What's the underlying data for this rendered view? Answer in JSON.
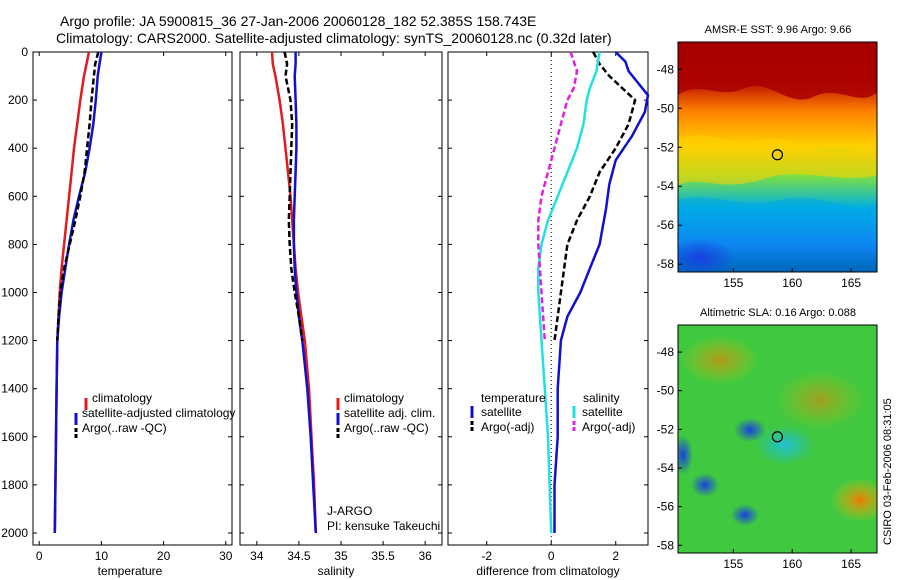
{
  "header": {
    "line1": "Argo profile: JA 5900815_36 27-Jan-2006 20060128_182 52.385S 158.743E",
    "line2": "Climatology: CARS2000. Satellite-adjusted climatology: synTS_20060128.nc (0.32d later)"
  },
  "colors": {
    "red": "#e41a1c",
    "blue": "#1010d0",
    "black": "#000000",
    "cyan": "#20e0e0",
    "magenta": "#e020e0"
  },
  "chart_data": [
    {
      "type": "line",
      "xlabel": "temperature",
      "xlim": [
        -1,
        31
      ],
      "ylim": [
        0,
        2050
      ],
      "y_reversed": true,
      "xticks": [
        "0",
        "10",
        "20",
        "30"
      ],
      "yticks": [
        "0",
        "200",
        "400",
        "600",
        "800",
        "1000",
        "1200",
        "1400",
        "1600",
        "1800",
        "2000"
      ],
      "legend": [
        "climatology",
        "satellite-adjusted climatology",
        "Argo(..raw -QC)"
      ],
      "series": [
        {
          "name": "climatology",
          "color": "red",
          "x": [
            8.0,
            7.6,
            7.2,
            6.6,
            6.1,
            5.6,
            5.2,
            4.8,
            4.4,
            4.0,
            3.6,
            3.3,
            3.1,
            2.9,
            2.8,
            2.7,
            2.6,
            2.5
          ],
          "y": [
            0,
            50,
            100,
            200,
            300,
            400,
            500,
            600,
            700,
            800,
            900,
            1000,
            1100,
            1200,
            1400,
            1600,
            1800,
            2000
          ]
        },
        {
          "name": "satellite-adjusted climatology",
          "color": "blue",
          "x": [
            10.0,
            9.7,
            9.4,
            9.1,
            8.7,
            8.1,
            7.4,
            6.4,
            5.5,
            4.8,
            4.2,
            3.6,
            3.2,
            2.9,
            2.8,
            2.7,
            2.6,
            2.5
          ],
          "y": [
            0,
            50,
            100,
            200,
            300,
            400,
            500,
            600,
            700,
            800,
            900,
            1000,
            1100,
            1200,
            1400,
            1600,
            1800,
            2000
          ]
        },
        {
          "name": "Argo(..raw -QC)",
          "color": "black",
          "x": [
            9.5,
            9.0,
            8.8,
            8.4,
            8.1,
            7.7,
            7.3,
            6.6,
            5.8,
            4.9,
            4.0,
            3.4,
            3.1,
            2.9
          ],
          "y": [
            0,
            50,
            100,
            200,
            300,
            400,
            500,
            600,
            700,
            800,
            900,
            1000,
            1100,
            1200
          ]
        }
      ]
    },
    {
      "type": "line",
      "xlabel": "salinity",
      "xlim": [
        33.8,
        36.2
      ],
      "ylim": [
        0,
        2050
      ],
      "y_reversed": true,
      "xticks": [
        "34",
        "34.5",
        "35",
        "35.5",
        "36"
      ],
      "legend": [
        "climatology",
        "satellite adj. clim.",
        "Argo(..raw -QC)"
      ],
      "annotations": [
        "J-ARGO",
        "PI: kensuke Takeuchi"
      ],
      "series": [
        {
          "name": "climatology",
          "color": "red",
          "x": [
            34.18,
            34.19,
            34.22,
            34.27,
            34.31,
            34.34,
            34.37,
            34.4,
            34.42,
            34.44,
            34.46,
            34.49,
            34.53,
            34.57,
            34.62,
            34.65,
            34.68,
            34.7
          ],
          "y": [
            0,
            50,
            100,
            200,
            300,
            400,
            500,
            600,
            700,
            800,
            900,
            1000,
            1100,
            1200,
            1400,
            1600,
            1800,
            2000
          ]
        },
        {
          "name": "satellite adj. clim.",
          "color": "blue",
          "x": [
            34.46,
            34.46,
            34.45,
            34.46,
            34.47,
            34.47,
            34.46,
            34.45,
            34.44,
            34.44,
            34.45,
            34.47,
            34.5,
            34.54,
            34.6,
            34.64,
            34.67,
            34.7
          ],
          "y": [
            0,
            50,
            100,
            200,
            300,
            400,
            500,
            600,
            700,
            800,
            900,
            1000,
            1100,
            1200,
            1400,
            1600,
            1800,
            2000
          ]
        },
        {
          "name": "Argo(..raw -QC)",
          "color": "black",
          "x": [
            34.33,
            34.36,
            34.34,
            34.4,
            34.42,
            34.41,
            34.4,
            34.39,
            34.38,
            34.39,
            34.41,
            34.45,
            34.5,
            34.54
          ],
          "y": [
            0,
            50,
            100,
            200,
            300,
            400,
            500,
            600,
            700,
            800,
            900,
            1000,
            1100,
            1200
          ]
        }
      ]
    },
    {
      "type": "line",
      "xlabel": "difference from climatology",
      "xlim": [
        -3.2,
        3.0
      ],
      "ylim": [
        0,
        2050
      ],
      "y_reversed": true,
      "xticks": [
        "-2",
        "0",
        "2"
      ],
      "legend_titles": [
        "temperature",
        "salinity"
      ],
      "legend": [
        "satellite",
        "Argo(-adj)",
        "satellite",
        "Argo(-adj)"
      ],
      "series": [
        {
          "name": "temperature satellite",
          "color": "blue",
          "x": [
            2.0,
            2.3,
            2.4,
            3.0,
            2.9,
            2.5,
            2.0,
            1.8,
            1.7,
            1.5,
            1.2,
            0.9,
            0.5,
            0.3,
            0.2,
            0.2,
            0.1,
            0.1,
            0.1
          ],
          "y": [
            0,
            40,
            80,
            180,
            250,
            350,
            450,
            550,
            650,
            800,
            900,
            1000,
            1100,
            1200,
            1400,
            1600,
            1800,
            1900,
            2000
          ]
        },
        {
          "name": "temperature Argo(-adj)",
          "color": "black",
          "x": [
            1.3,
            1.5,
            1.8,
            2.6,
            2.4,
            2.0,
            1.5,
            1.2,
            0.8,
            0.5,
            0.3,
            0.1
          ],
          "y": [
            0,
            50,
            100,
            200,
            300,
            400,
            500,
            600,
            700,
            800,
            1000,
            1200
          ]
        },
        {
          "name": "salinity satellite",
          "color": "cyan",
          "x": [
            1.5,
            1.4,
            1.2,
            1.1,
            1.0,
            0.8,
            0.5,
            0.2,
            -0.1,
            -0.3,
            -0.4,
            -0.4,
            -0.3,
            -0.2,
            -0.1,
            0.0
          ],
          "y": [
            0,
            80,
            150,
            200,
            300,
            400,
            500,
            600,
            700,
            800,
            900,
            1000,
            1200,
            1400,
            1600,
            2000
          ]
        },
        {
          "name": "salinity Argo(-adj)",
          "color": "magenta",
          "x": [
            0.6,
            0.8,
            0.7,
            0.5,
            0.3,
            0.1,
            -0.1,
            -0.3,
            -0.4,
            -0.4,
            -0.3,
            -0.2
          ],
          "y": [
            0,
            80,
            150,
            200,
            300,
            400,
            500,
            600,
            700,
            800,
            1000,
            1200
          ]
        }
      ]
    },
    {
      "type": "heatmap",
      "title": "AMSR-E SST: 9.96  Argo: 9.66",
      "xticks": [
        "155",
        "160",
        "165"
      ],
      "yticks": [
        "-48",
        "-50",
        "-52",
        "-54",
        "-56",
        "-58"
      ],
      "marker": {
        "lon": 158.743,
        "lat": -52.385
      }
    },
    {
      "type": "heatmap",
      "title": "Altimetric SLA: 0.16  Argo: 0.088",
      "xticks": [
        "155",
        "160",
        "165"
      ],
      "yticks": [
        "-48",
        "-50",
        "-52",
        "-54",
        "-56",
        "-58"
      ],
      "marker": {
        "lon": 158.743,
        "lat": -52.385
      }
    }
  ],
  "footer": {
    "credit": "CSIRO 03-Feb-2006 08:31:05"
  }
}
